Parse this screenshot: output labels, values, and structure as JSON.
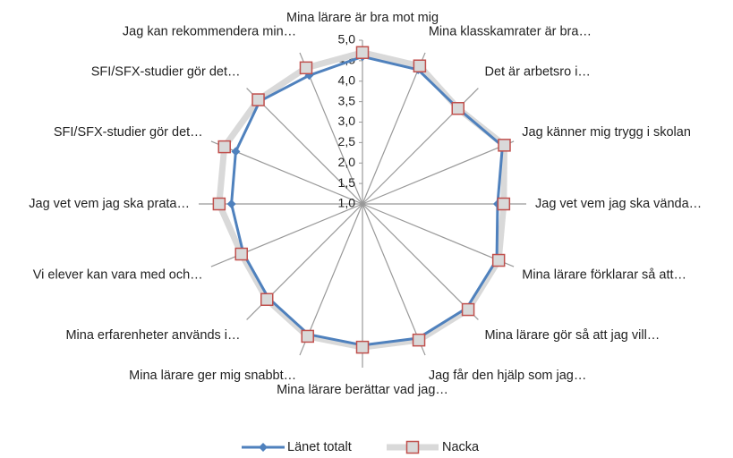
{
  "chart_data": {
    "type": "radar",
    "categories": [
      "Mina lärare är bra mot mig",
      "Mina klasskamrater är bra…",
      "Det är arbetsro i…",
      "Jag känner mig trygg i skolan",
      "Jag vet vem jag ska vända…",
      "Mina lärare förklarar så att…",
      "Mina lärare gör så att jag vill…",
      "Jag får den hjälp som jag…",
      "Mina lärare berättar vad jag…",
      "Mina lärare ger mig snabbt…",
      "Mina erfarenheter används i…",
      "Vi elever kan vara med och…",
      "Jag vet vem jag ska prata…",
      "SFI/SFX-studier gör det…",
      "SFI/SFX-studier gör det…",
      "Jag kan rekommendera min…"
    ],
    "series": [
      {
        "name": "Länet totalt",
        "color": "#4f81bd",
        "values": [
          4.6,
          4.55,
          4.3,
          4.7,
          4.3,
          4.55,
          4.6,
          4.55,
          4.45,
          4.45,
          4.25,
          4.15,
          4.2,
          4.35,
          4.55,
          4.4
        ]
      },
      {
        "name": "Nacka",
        "color": "#d9d9d9",
        "marker_edge": "#c0504d",
        "values": [
          4.7,
          4.65,
          4.3,
          4.75,
          4.45,
          4.6,
          4.65,
          4.6,
          4.5,
          4.5,
          4.3,
          4.2,
          4.5,
          4.65,
          4.6,
          4.6
        ]
      }
    ],
    "ylim": [
      1,
      5
    ],
    "yticks": [
      {
        "value": 1,
        "label": "1,0"
      },
      {
        "value": 1.5,
        "label": "1,5"
      },
      {
        "value": 2,
        "label": "2,0"
      },
      {
        "value": 2.5,
        "label": "2,5"
      },
      {
        "value": 3,
        "label": "3,0"
      },
      {
        "value": 3.5,
        "label": "3,5"
      },
      {
        "value": 4,
        "label": "4,0"
      },
      {
        "value": 4.5,
        "label": "4,5"
      },
      {
        "value": 5,
        "label": "5,0"
      }
    ],
    "legend": "bottom"
  }
}
